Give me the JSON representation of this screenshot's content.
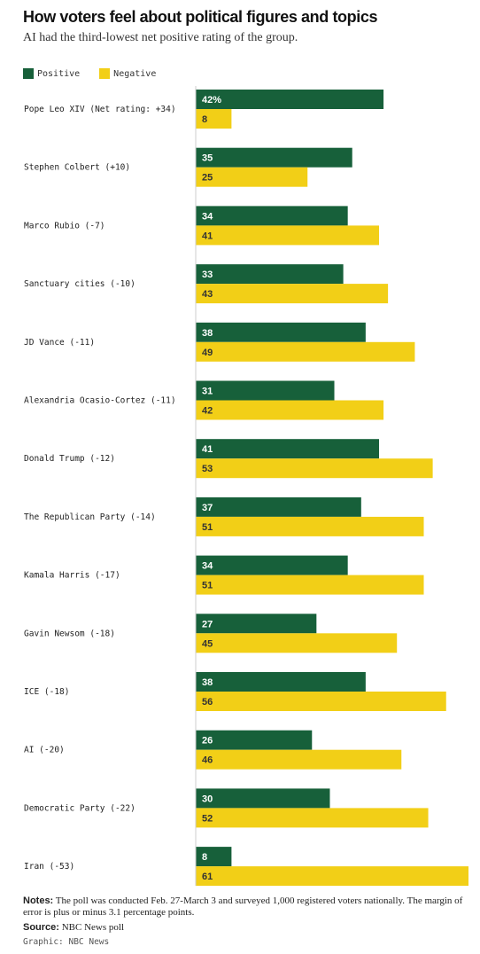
{
  "title": "How voters feel about political figures and topics",
  "subtitle": "AI had the third-lowest net positive rating of the group.",
  "legend": {
    "positive": "Positive",
    "negative": "Negative"
  },
  "colors": {
    "positive": "#17603a",
    "negative": "#f2cf17",
    "positive_text": "#ffffff",
    "negative_text": "#333333",
    "axis": "#cccccc"
  },
  "chart_data": {
    "type": "bar",
    "orientation": "horizontal",
    "grouped": true,
    "categories": [
      "Pope Leo XIV (Net rating: +34)",
      "Stephen Colbert (+10)",
      "Marco Rubio (-7)",
      "Sanctuary cities (-10)",
      "JD Vance (-11)",
      "Alexandria Ocasio-Cortez (-11)",
      "Donald Trump (-12)",
      "The Republican Party (-14)",
      "Kamala Harris (-17)",
      "Gavin Newsom (-18)",
      "ICE (-18)",
      "AI (-20)",
      "Democratic Party (-22)",
      "Iran (-53)"
    ],
    "series": [
      {
        "name": "Positive",
        "values": [
          42,
          35,
          34,
          33,
          38,
          31,
          41,
          37,
          34,
          27,
          38,
          26,
          30,
          8
        ]
      },
      {
        "name": "Negative",
        "values": [
          8,
          25,
          41,
          43,
          49,
          42,
          53,
          51,
          51,
          45,
          56,
          46,
          52,
          61
        ]
      }
    ],
    "first_label_suffix": "%",
    "xlim": [
      0,
      61
    ],
    "grid": false,
    "legend_position": "top-left"
  },
  "notes": {
    "label": "Notes:",
    "text": " The poll was conducted Feb. 27-March 3 and surveyed 1,000 registered voters nationally. The margin of error is plus or minus 3.1 percentage points."
  },
  "source": {
    "label": "Source:",
    "text": " NBC News poll"
  },
  "credit": "Graphic: NBC News"
}
